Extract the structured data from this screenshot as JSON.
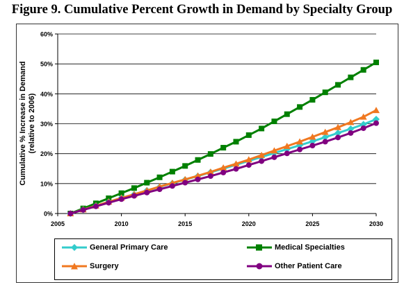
{
  "title": "Figure 9. Cumulative Percent Growth in Demand by Specialty Group",
  "chart_data": {
    "type": "line",
    "ylabel_line1": "Cumulative % Increase in Demand",
    "ylabel_line2": "(relative to 2006)",
    "xlabel": "",
    "xlim": [
      2005,
      2030
    ],
    "ylim": [
      0,
      60
    ],
    "x_ticks": [
      "2005",
      "2010",
      "2015",
      "2020",
      "2025",
      "2030"
    ],
    "y_ticks": [
      "0%",
      "10%",
      "20%",
      "30%",
      "40%",
      "50%",
      "60%"
    ],
    "grid": "horizontal",
    "legend_position": "bottom",
    "x": [
      2006,
      2007,
      2008,
      2009,
      2010,
      2011,
      2012,
      2013,
      2014,
      2015,
      2016,
      2017,
      2018,
      2019,
      2020,
      2021,
      2022,
      2023,
      2024,
      2025,
      2026,
      2027,
      2028,
      2029,
      2030
    ],
    "series": [
      {
        "name": "General Primary Care",
        "color": "#33cccc",
        "marker": "diamond",
        "values": [
          0,
          1.3,
          2.6,
          3.9,
          5.2,
          6.4,
          7.7,
          8.9,
          10.1,
          11.3,
          12.5,
          13.8,
          15.0,
          16.3,
          17.6,
          18.9,
          20.2,
          21.5,
          22.8,
          24.1,
          25.5,
          26.9,
          28.3,
          29.8,
          31.5
        ]
      },
      {
        "name": "Medical Specialties",
        "color": "#008000",
        "marker": "square",
        "values": [
          0,
          1.7,
          3.4,
          5.1,
          6.8,
          8.5,
          10.3,
          12.1,
          14.0,
          15.9,
          17.9,
          19.9,
          22.0,
          24.0,
          26.2,
          28.4,
          30.8,
          33.2,
          35.6,
          38.0,
          40.5,
          43.0,
          45.5,
          48.0,
          50.5
        ]
      },
      {
        "name": "Surgery",
        "color": "#f07820",
        "marker": "triangle",
        "values": [
          0,
          1.3,
          2.6,
          3.9,
          5.2,
          6.4,
          7.7,
          9.0,
          10.2,
          11.4,
          12.6,
          13.9,
          15.3,
          16.6,
          18.0,
          19.5,
          21.0,
          22.5,
          24.0,
          25.6,
          27.2,
          28.8,
          30.5,
          32.3,
          34.5
        ]
      },
      {
        "name": "Other Patient Care",
        "color": "#800080",
        "marker": "circle",
        "values": [
          0,
          1.2,
          2.4,
          3.6,
          4.8,
          5.9,
          7.0,
          8.1,
          9.2,
          10.3,
          11.4,
          12.5,
          13.7,
          14.9,
          16.2,
          17.5,
          18.8,
          20.1,
          21.4,
          22.7,
          24.0,
          25.4,
          26.9,
          28.5,
          30.2
        ]
      }
    ]
  }
}
